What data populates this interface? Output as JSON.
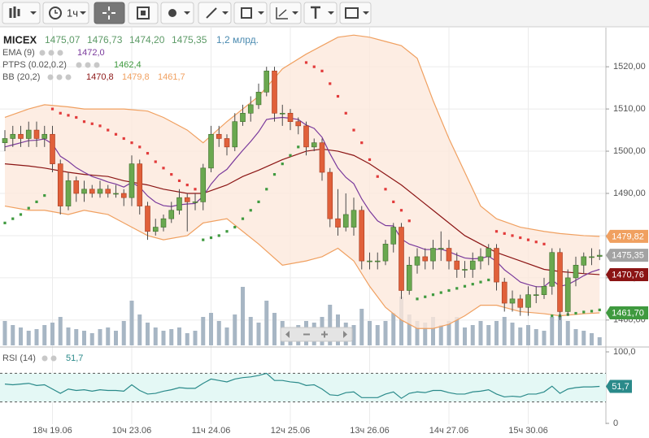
{
  "toolbar": {
    "interval": "1ч"
  },
  "chart_data": [
    {
      "type": "candlestick",
      "title": "MICEX",
      "ohlc_labels": [
        "1475,07",
        "1476,73",
        "1474,20",
        "1475,35"
      ],
      "volume_label": "1,2 млрд.",
      "categories": [
        null,
        null,
        null,
        null,
        null,
        null,
        "18ч 19.06",
        null,
        null,
        null,
        null,
        null,
        null,
        null,
        null,
        null,
        "10ч 23.06",
        null,
        null,
        null,
        null,
        null,
        null,
        null,
        null,
        null,
        "11ч 24.06",
        null,
        null,
        null,
        null,
        null,
        null,
        null,
        null,
        null,
        "12ч 25.06",
        null,
        null,
        null,
        null,
        null,
        null,
        null,
        null,
        null,
        "13ч 26.06",
        null,
        null,
        null,
        null,
        null,
        null,
        null,
        null,
        null,
        "14ч 27.06",
        null,
        null,
        null,
        null,
        null,
        null,
        null,
        null,
        null,
        "15ч 30.06",
        null,
        null,
        null,
        null,
        null,
        null,
        null,
        null,
        null
      ],
      "open": [
        1502,
        1503,
        1504,
        1503,
        1505,
        1503,
        1504,
        1497,
        1487,
        1493,
        1490,
        1491,
        1490,
        1491,
        1490,
        1490,
        1489,
        1497,
        1487,
        1481,
        1482,
        1484,
        1486,
        1489,
        1488,
        1488,
        1496,
        1504,
        1503,
        1501,
        1507,
        1509,
        1511,
        1514,
        1519,
        1509,
        1509,
        1507,
        1506,
        1501,
        1502,
        1495,
        1484,
        1482,
        1482,
        1486,
        1474,
        1474,
        1474,
        1478,
        1482,
        1467,
        1473,
        1475,
        1474,
        1477,
        1477,
        1474,
        1472,
        1472,
        1474,
        1475,
        1477,
        1469,
        1464,
        1465,
        1463,
        1466,
        1466,
        1468,
        1476,
        1462,
        1470,
        1473,
        1475,
        1475.07
      ],
      "high": [
        1505,
        1506,
        1506,
        1507,
        1507,
        1506,
        1506,
        1498,
        1495,
        1494,
        1493,
        1492,
        1493,
        1492,
        1492,
        1491,
        1499,
        1498,
        1488,
        1484,
        1485,
        1488,
        1491,
        1490,
        1490,
        1497,
        1506,
        1506,
        1504,
        1509,
        1511,
        1513,
        1516,
        1520,
        1520,
        1511,
        1510,
        1508,
        1507,
        1503,
        1503,
        1496,
        1491,
        1490,
        1489,
        1487,
        1476,
        1476,
        1479,
        1483,
        1483,
        1475,
        1477,
        1477,
        1479,
        1481,
        1479,
        1476,
        1474,
        1476,
        1477,
        1478,
        1478,
        1470,
        1467,
        1466,
        1468,
        1468,
        1470,
        1477,
        1477,
        1472,
        1475,
        1476,
        1477,
        1476.73
      ],
      "low": [
        1500,
        1501,
        1501,
        1501,
        1501,
        1501,
        1495,
        1485,
        1486,
        1488,
        1488,
        1489,
        1489,
        1489,
        1489,
        1487,
        1487,
        1485,
        1479,
        1480,
        1481,
        1483,
        1485,
        1481,
        1486,
        1486,
        1495,
        1501,
        1499,
        1500,
        1506,
        1507,
        1510,
        1513,
        1507,
        1506,
        1505,
        1504,
        1499,
        1500,
        1493,
        1482,
        1480,
        1481,
        1480,
        1472,
        1472,
        1472,
        1473,
        1476,
        1465,
        1466,
        1471,
        1472,
        1472,
        1474,
        1472,
        1470,
        1470,
        1470,
        1472,
        1473,
        1467,
        1462,
        1462,
        1461,
        1461,
        1464,
        1465,
        1466,
        1460,
        1461,
        1468,
        1471,
        1473,
        1474.2
      ],
      "close": [
        1503,
        1504,
        1503,
        1505,
        1503,
        1504,
        1497,
        1487,
        1493,
        1490,
        1491,
        1490,
        1491,
        1490,
        1490,
        1489,
        1497,
        1487,
        1481,
        1482,
        1484,
        1486,
        1489,
        1488,
        1488,
        1496,
        1504,
        1503,
        1501,
        1507,
        1509,
        1511,
        1514,
        1519,
        1509,
        1509,
        1507,
        1506,
        1501,
        1502,
        1495,
        1484,
        1482,
        1485,
        1486,
        1474,
        1474,
        1474,
        1478,
        1482,
        1467,
        1473,
        1475,
        1474,
        1477,
        1477,
        1474,
        1472,
        1472,
        1474,
        1475,
        1477,
        1469,
        1464,
        1465,
        1463,
        1466,
        1466,
        1468,
        1476,
        1462,
        1470,
        1473,
        1475,
        1475,
        1475.35
      ],
      "up_color": "#6aa84f",
      "down_color": "#e0603a",
      "close_label_color": "#a3a3a3",
      "volume": [
        30,
        25,
        22,
        18,
        20,
        25,
        28,
        35,
        22,
        20,
        18,
        15,
        20,
        22,
        18,
        30,
        55,
        38,
        28,
        22,
        18,
        20,
        22,
        15,
        18,
        35,
        40,
        30,
        22,
        38,
        72,
        35,
        28,
        55,
        40,
        30,
        22,
        25,
        30,
        28,
        35,
        50,
        38,
        28,
        25,
        45,
        30,
        25,
        30,
        40,
        60,
        38,
        30,
        28,
        35,
        25,
        30,
        35,
        22,
        25,
        30,
        25,
        30,
        35,
        28,
        22,
        25,
        20,
        18,
        35,
        45,
        30,
        20,
        18,
        15,
        10
      ],
      "vlim": [
        0,
        75
      ],
      "volume_color": "#a7b6c4",
      "ylim": [
        1454,
        1528.5
      ],
      "yticks": [
        {
          "value": 1460,
          "label": "1460,00"
        },
        {
          "value": 1470,
          "label": "1470,00"
        },
        {
          "value": 1480,
          "label": "1480,00"
        },
        {
          "value": 1490,
          "label": "1490,00"
        },
        {
          "value": 1500,
          "label": "1500,00"
        },
        {
          "value": 1510,
          "label": "1510,00"
        },
        {
          "value": 1520,
          "label": "1520,00"
        }
      ],
      "grid": true,
      "ema": {
        "name": "EMA (9)",
        "color": "#7a3a9c",
        "value_label": "1472,0",
        "values": [
          1501,
          1501.5,
          1502,
          1502.5,
          1502.6,
          1502.9,
          1501.7,
          1498.8,
          1497.6,
          1496.1,
          1495.0,
          1494.0,
          1493.4,
          1492.7,
          1492.2,
          1491.5,
          1492.6,
          1491.5,
          1489.4,
          1487.9,
          1487.1,
          1486.9,
          1487.3,
          1487.5,
          1487.6,
          1489.3,
          1492.2,
          1494.4,
          1495.7,
          1498.0,
          1500.2,
          1502.3,
          1504.6,
          1507.5,
          1507.8,
          1508.0,
          1507.8,
          1507.5,
          1506.2,
          1505.4,
          1503.3,
          1499.4,
          1496.0,
          1493.8,
          1492.3,
          1488.7,
          1485.8,
          1483.5,
          1482.4,
          1482.3,
          1479.2,
          1478.0,
          1477.4,
          1476.7,
          1476.7,
          1476.8,
          1476.2,
          1475.4,
          1474.7,
          1474.5,
          1474.6,
          1475.1,
          1473.9,
          1471.9,
          1470.5,
          1469.0,
          1468.4,
          1467.9,
          1467.9,
          1469.5,
          1468.0,
          1468.4,
          1469.4,
          1470.5,
          1471.4,
          1472.0
        ]
      },
      "psar": {
        "name": "PTPS (0.02,0.2)",
        "up_color": "#3f9a3f",
        "down_color": "#e23b3b",
        "value_label": "1462,4",
        "values": [
          1483,
          1484,
          1485,
          1486.5,
          1488,
          1489.5,
          1510,
          1509,
          1508.5,
          1508,
          1507,
          1506.5,
          1506,
          1505,
          1504,
          1503,
          1502,
          1501,
          1499.5,
          1497.5,
          1496,
          1494.5,
          1493,
          1492,
          1491,
          1479,
          1479.5,
          1480,
          1481,
          1482,
          1484,
          1486,
          1488,
          1491,
          1494.5,
          1497,
          1499,
          1501,
          1521,
          1520,
          1519,
          1516,
          1513,
          1509,
          1505,
          1502,
          1498,
          1494,
          1491,
          1488,
          1486,
          1483.5,
          1465,
          1465.5,
          1466,
          1466.5,
          1467,
          1467.5,
          1468,
          1468.5,
          1469,
          1469.5,
          1481,
          1480.5,
          1480,
          1479.5,
          1479,
          1478.5,
          1478,
          1461,
          1461,
          1461.3,
          1461.6,
          1461.9,
          1462.1,
          1462.4
        ]
      },
      "bb": {
        "name": "BB (20,2)",
        "fill": "#fde8dc",
        "band_color": "#f0a060",
        "middle_color": "#8b1414",
        "lower_label_color": "#3f9a3f",
        "x": [
          0,
          3,
          5,
          8,
          10,
          13,
          15,
          18,
          20,
          23,
          25,
          28,
          30,
          32,
          35,
          38,
          40,
          42,
          44,
          46,
          48,
          50,
          52,
          54,
          56,
          58,
          60,
          62,
          65,
          68,
          70,
          73,
          75
        ],
        "middle": [
          1497,
          1496.5,
          1496,
          1495,
          1494.5,
          1494,
          1493,
          1492,
          1491,
          1490,
          1490,
          1492,
          1494,
          1495.5,
          1498,
          1500,
          1500.5,
          1500,
          1499,
          1497,
          1494.5,
          1492,
          1489,
          1486,
          1483,
          1480,
          1478,
          1476,
          1474,
          1472,
          1471.5,
          1471,
          1470.76
        ],
        "upper": [
          1508,
          1510,
          1511,
          1510.5,
          1510,
          1510,
          1510,
          1509.5,
          1508,
          1505,
          1502,
          1507,
          1510,
          1513,
          1519.5,
          1523,
          1525,
          1527,
          1527.5,
          1527,
          1526,
          1525,
          1522,
          1512,
          1503,
          1495,
          1487,
          1484,
          1482,
          1481,
          1480.5,
          1480,
          1479.82
        ],
        "lower": [
          1487,
          1486,
          1486,
          1485,
          1486,
          1485,
          1483,
          1480,
          1479,
          1480,
          1483,
          1484,
          1481,
          1478,
          1473,
          1474,
          1475,
          1477,
          1474,
          1468,
          1463,
          1460,
          1458,
          1458,
          1459,
          1461,
          1463.5,
          1463.5,
          1462,
          1461.5,
          1461,
          1461.5,
          1461.7
        ],
        "value_labels": [
          "1470,8",
          "1479,8",
          "1461,7"
        ],
        "price_labels": [
          "1470,76",
          "1479,82",
          "1461,70"
        ]
      }
    },
    {
      "type": "line",
      "title": "RSI (14)",
      "value_label": "51,7",
      "color": "#2a8a8a",
      "band_color": "#e4f8f5",
      "values": [
        55,
        54,
        55,
        56,
        53,
        54,
        48,
        42,
        48,
        46,
        47,
        45,
        47,
        46,
        46,
        45,
        54,
        46,
        41,
        42,
        45,
        47,
        50,
        49,
        49,
        56,
        62,
        60,
        58,
        62,
        64,
        65,
        67,
        70,
        60,
        60,
        58,
        57,
        53,
        54,
        48,
        40,
        39,
        43,
        44,
        36,
        36,
        36,
        41,
        44,
        35,
        42,
        44,
        43,
        46,
        46,
        43,
        41,
        41,
        44,
        45,
        47,
        41,
        37,
        38,
        37,
        41,
        41,
        44,
        52,
        42,
        48,
        50,
        51,
        51,
        51.7
      ],
      "ylim": [
        0,
        100
      ],
      "yticks": [
        {
          "value": 100,
          "label": "100,0"
        },
        0
      ],
      "levels": [
        30,
        70
      ]
    }
  ]
}
